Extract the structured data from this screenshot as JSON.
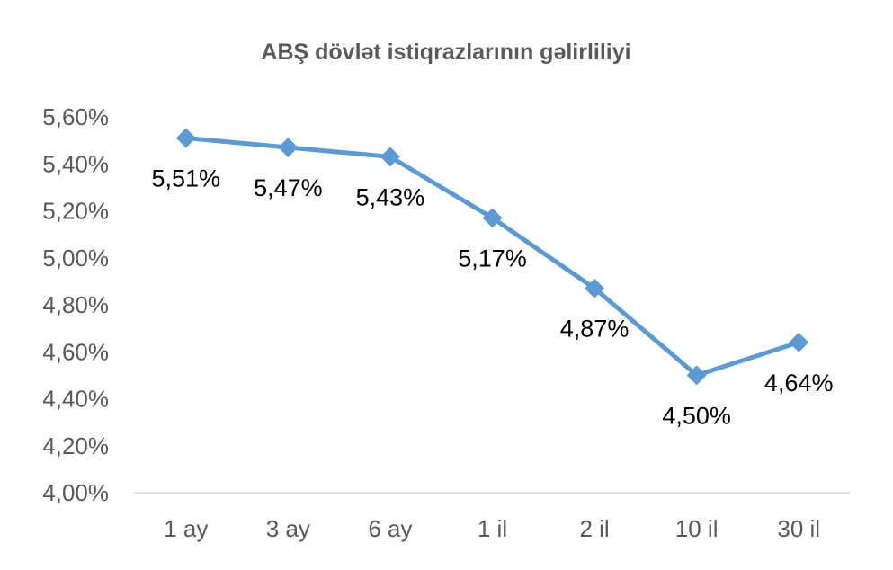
{
  "chart_data": {
    "type": "line",
    "title": "ABŞ dövlət istiqrazlarının gəlirliliyi",
    "xlabel": "",
    "ylabel": "",
    "categories": [
      "1 ay",
      "3 ay",
      "6 ay",
      "1 il",
      "2 il",
      "10 il",
      "30 il"
    ],
    "series": [
      {
        "values": [
          5.51,
          5.47,
          5.43,
          5.17,
          4.87,
          4.5,
          4.64
        ],
        "data_labels": [
          "5,51%",
          "5,47%",
          "5,43%",
          "5,17%",
          "4,87%",
          "4,50%",
          "4,64%"
        ]
      }
    ],
    "ylim": [
      4.0,
      5.6
    ],
    "yticks": [
      4.0,
      4.2,
      4.4,
      4.6,
      4.8,
      5.0,
      5.2,
      5.4,
      5.6
    ],
    "ytick_labels": [
      "4,00%",
      "4,20%",
      "4,40%",
      "4,60%",
      "4,80%",
      "5,00%",
      "5,20%",
      "5,40%",
      "5,60%"
    ],
    "grid": false,
    "legend": "none",
    "colors": {
      "line": "#5B9BD5",
      "axis": "#D9D9D9",
      "tick_text": "#595959",
      "title_text": "#595959",
      "label_text": "#000000"
    }
  }
}
